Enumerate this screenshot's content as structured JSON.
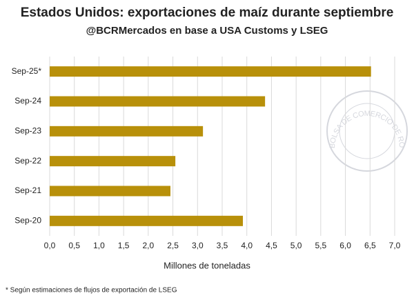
{
  "chart_data": {
    "type": "barh",
    "title": "Estados Unidos: exportaciones de maíz durante septiembre",
    "subtitle": "@BCRMercados en base a USA Customs y LSEG",
    "xlabel": "Millones de toneladas",
    "footnote": "* Según estimaciones de flujos de exportación de LSEG",
    "watermark": "BOLSA DE COMERCIO DE ROSARIO",
    "categories": [
      "Sep-25*",
      "Sep-24",
      "Sep-23",
      "Sep-22",
      "Sep-21",
      "Sep-20"
    ],
    "values": [
      6.52,
      4.37,
      3.11,
      2.55,
      2.45,
      3.92
    ],
    "color": "#b8900a",
    "xlim": [
      0,
      7
    ],
    "xticks": [
      {
        "value": 0,
        "label": "0,0"
      },
      {
        "value": 0.5,
        "label": "0,5"
      },
      {
        "value": 1,
        "label": "1,0"
      },
      {
        "value": 1.5,
        "label": "1,5"
      },
      {
        "value": 2,
        "label": "2,0"
      },
      {
        "value": 2.5,
        "label": "2,5"
      },
      {
        "value": 3,
        "label": "3,0"
      },
      {
        "value": 3.5,
        "label": "3,5"
      },
      {
        "value": 4,
        "label": "4,0"
      },
      {
        "value": 4.5,
        "label": "4,5"
      },
      {
        "value": 5,
        "label": "5,0"
      },
      {
        "value": 5.5,
        "label": "5,5"
      },
      {
        "value": 6,
        "label": "6,0"
      },
      {
        "value": 6.5,
        "label": "6,5"
      },
      {
        "value": 7,
        "label": "7,0"
      }
    ],
    "grid": true
  }
}
